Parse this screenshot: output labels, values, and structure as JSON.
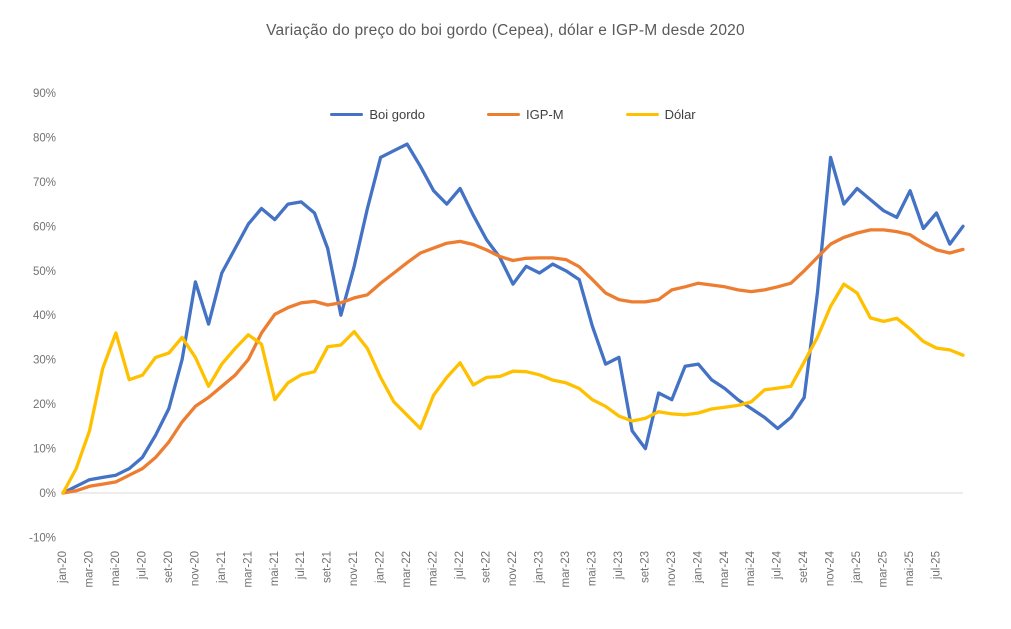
{
  "title": "Variação do preço do boi gordo (Cepea), dólar e IGP-M desde 2020",
  "colors": {
    "boi_gordo": "#4472C4",
    "igpm": "#ED7D31",
    "dolar": "#FFC000",
    "axis_text": "#757171",
    "title_text": "#595959",
    "zero_line": "#D9D9D9"
  },
  "chart_data": {
    "type": "line",
    "title": "Variação do preço do boi gordo (Cepea), dólar e IGP-M desde 2020",
    "xlabel": "",
    "ylabel": "",
    "unit": "%",
    "ylim": [
      -10,
      90
    ],
    "y_tick_step": 10,
    "grid": "zero-line-only",
    "legend_position": "top",
    "months_total": 69,
    "x_start_month": "jan-20",
    "x_end_month": "set-25",
    "x_tick_labels": [
      "jan-20",
      "mar-20",
      "mai-20",
      "jul-20",
      "set-20",
      "nov-20",
      "jan-21",
      "mar-21",
      "mai-21",
      "jul-21",
      "set-21",
      "nov-21",
      "jan-22",
      "mar-22",
      "mai-22",
      "jul-22",
      "set-22",
      "nov-22",
      "jan-23",
      "mar-23",
      "mai-23",
      "jul-23",
      "set-23",
      "nov-23",
      "jan-24",
      "mar-24",
      "mai-24",
      "jul-24",
      "set-24",
      "nov-24",
      "jan-25",
      "mar-25",
      "mai-25",
      "jul-25"
    ],
    "x_tick_every": 2,
    "series": [
      {
        "name": "Boi gordo",
        "color": "#4472C4",
        "values": [
          0,
          1.5,
          3,
          3.5,
          4,
          5.5,
          8,
          13,
          19,
          30,
          47.5,
          38,
          49.5,
          55,
          60.5,
          64,
          61.5,
          65,
          65.5,
          63,
          55,
          40,
          51,
          64,
          75.5,
          77,
          78.5,
          73.5,
          68,
          65,
          68.5,
          62.5,
          57,
          53,
          47,
          51,
          49.5,
          51.5,
          50,
          48,
          37.5,
          29,
          30.5,
          14,
          10,
          22.5,
          21,
          28.5,
          29,
          25.5,
          23.5,
          21,
          19,
          17,
          14.5,
          17,
          21.5,
          45,
          75.5,
          65,
          68.5,
          66,
          63.5,
          62,
          68,
          59.5,
          63,
          56,
          60
        ]
      },
      {
        "name": "IGP-M",
        "color": "#ED7D31",
        "values": [
          0,
          0.5,
          1.5,
          2,
          2.5,
          4,
          5.5,
          8,
          11.5,
          16,
          19.5,
          21.5,
          24,
          26.5,
          30,
          36,
          40.2,
          41.7,
          42.8,
          43.1,
          42.3,
          42.8,
          43.9,
          44.6,
          47.2,
          49.5,
          51.8,
          54,
          55.1,
          56.2,
          56.6,
          55.9,
          54.7,
          53.2,
          52.3,
          52.8,
          52.9,
          52.9,
          52.5,
          50.9,
          48,
          45,
          43.5,
          43,
          43,
          43.5,
          45.7,
          46.4,
          47.2,
          46.8,
          46.4,
          45.7,
          45.3,
          45.7,
          46.4,
          47.2,
          50,
          53,
          56,
          57.5,
          58.5,
          59.2,
          59.2,
          58.8,
          58.1,
          56.2,
          54.7,
          54,
          54.8
        ]
      },
      {
        "name": "Dólar",
        "color": "#FFC000",
        "values": [
          0,
          5.5,
          14,
          28,
          36,
          25.5,
          26.5,
          30.5,
          31.5,
          35,
          30.5,
          24,
          29,
          32.5,
          35.6,
          33.5,
          21,
          24.8,
          26.6,
          27.3,
          32.9,
          33.3,
          36.3,
          32.5,
          26,
          20.5,
          17.5,
          14.5,
          22,
          26,
          29.3,
          24.3,
          26,
          26.2,
          27.4,
          27.3,
          26.6,
          25.4,
          24.8,
          23.5,
          21,
          19.5,
          17.3,
          16.2,
          16.8,
          18.3,
          17.8,
          17.6,
          18,
          18.9,
          19.3,
          19.7,
          20.5,
          23.2,
          23.6,
          24,
          29.5,
          35,
          42,
          47,
          45,
          39.4,
          38.6,
          39.3,
          36.9,
          34.1,
          32.6,
          32.2,
          31
        ]
      }
    ]
  }
}
